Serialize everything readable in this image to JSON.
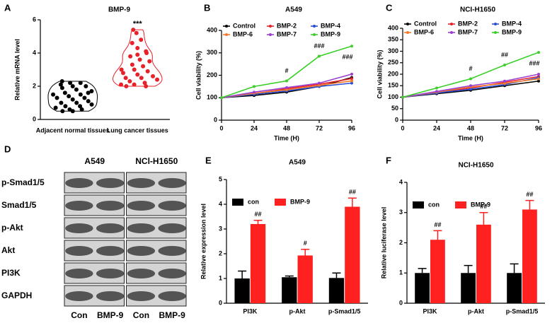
{
  "chart_data": [
    {
      "type": "violin",
      "panel": "A",
      "title": "BMP-9",
      "ylabel": "Relative mRNA level",
      "categories": [
        "Adjacent normal tissues",
        "Lung cancer tissues"
      ],
      "colors": [
        "#000000",
        "#e8202a"
      ],
      "values": [
        [
          2.3,
          2.2,
          2.2,
          2.1,
          2.0,
          2.0,
          1.9,
          1.8,
          1.7,
          1.6,
          1.5,
          1.5,
          1.4,
          1.3,
          1.3,
          1.2,
          1.1,
          1.0,
          1.0,
          0.9,
          0.8,
          0.8,
          0.7,
          0.6,
          0.6,
          0.5,
          0.5,
          1.6
        ],
        [
          5.4,
          5.2,
          4.8,
          4.6,
          4.3,
          4.0,
          3.8,
          3.6,
          3.5,
          3.3,
          3.2,
          3.0,
          3.0,
          2.9,
          2.8,
          2.7,
          2.6,
          2.5,
          2.5,
          2.4,
          2.3,
          2.2,
          2.1,
          2.1,
          2.0,
          2.0,
          3.9,
          4.1
        ]
      ],
      "annotations": [
        null,
        "***"
      ],
      "ylim": [
        0,
        6
      ],
      "yticks": [
        0,
        2,
        4,
        6
      ]
    },
    {
      "type": "line",
      "panel": "B",
      "title": "A549",
      "xlabel": "Time (H)",
      "ylabel": "Cell viability (%)",
      "x": [
        0,
        24,
        48,
        72,
        96
      ],
      "xlim": [
        0,
        96
      ],
      "xticks": [
        0,
        24,
        48,
        72,
        96
      ],
      "ylim": [
        0,
        400
      ],
      "yticks": [
        0,
        100,
        200,
        300,
        400
      ],
      "series": [
        {
          "name": "Control",
          "color": "#000000",
          "values": [
            100,
            110,
            125,
            150,
            190
          ]
        },
        {
          "name": "BMP-2",
          "color": "#e8202a",
          "values": [
            100,
            118,
            140,
            160,
            185
          ]
        },
        {
          "name": "BMP-4",
          "color": "#2a4fd6",
          "values": [
            100,
            115,
            130,
            150,
            165
          ]
        },
        {
          "name": "BMP-6",
          "color": "#f07a2a",
          "values": [
            100,
            120,
            135,
            155,
            175
          ]
        },
        {
          "name": "BMP-7",
          "color": "#9b3fd1",
          "values": [
            100,
            125,
            145,
            165,
            205
          ]
        },
        {
          "name": "BMP-9",
          "color": "#3ccf2a",
          "values": [
            100,
            150,
            175,
            285,
            330
          ]
        }
      ],
      "annotations": [
        null,
        null,
        "#",
        "###",
        "###"
      ]
    },
    {
      "type": "line",
      "panel": "C",
      "title": "NCI-H1650",
      "xlabel": "Time (H)",
      "ylabel": "Cell viability (%)",
      "x": [
        0,
        24,
        48,
        72,
        96
      ],
      "xlim": [
        0,
        96
      ],
      "xticks": [
        0,
        24,
        48,
        72,
        96
      ],
      "ylim": [
        0,
        400
      ],
      "yticks": [
        0,
        50,
        100,
        150,
        200,
        250,
        300,
        350,
        400
      ],
      "series": [
        {
          "name": "Control",
          "color": "#000000",
          "values": [
            100,
            115,
            130,
            150,
            170
          ]
        },
        {
          "name": "BMP-2",
          "color": "#e8202a",
          "values": [
            100,
            120,
            140,
            165,
            190
          ]
        },
        {
          "name": "BMP-4",
          "color": "#2a4fd6",
          "values": [
            100,
            118,
            135,
            155,
            185
          ]
        },
        {
          "name": "BMP-6",
          "color": "#f07a2a",
          "values": [
            100,
            122,
            145,
            160,
            180
          ]
        },
        {
          "name": "BMP-7",
          "color": "#9b3fd1",
          "values": [
            100,
            125,
            150,
            170,
            200
          ]
        },
        {
          "name": "BMP-9",
          "color": "#3ccf2a",
          "values": [
            100,
            140,
            180,
            240,
            295
          ]
        }
      ],
      "annotations": [
        null,
        null,
        "#",
        "##",
        "###"
      ]
    },
    {
      "type": "blot",
      "panel": "D",
      "groups": [
        "A549",
        "NCl-H1650"
      ],
      "rows": [
        "p-Smad1/5",
        "Smad1/5",
        "p-Akt",
        "Akt",
        "PI3K",
        "GAPDH"
      ],
      "lanes": [
        "Con",
        "BMP-9",
        "Con",
        "BMP-9"
      ]
    },
    {
      "type": "bar",
      "panel": "E",
      "title": "A549",
      "ylabel": "Relative expression level",
      "categories": [
        "PI3K",
        "p-Akt",
        "p-Smad1/5"
      ],
      "ylim": [
        0,
        5
      ],
      "yticks": [
        0,
        1,
        2,
        3,
        4,
        5
      ],
      "series": [
        {
          "name": "con",
          "color": "#000000",
          "values": [
            1.0,
            1.05,
            1.02
          ],
          "errors": [
            0.3,
            0.05,
            0.2
          ]
        },
        {
          "name": "BMP-9",
          "color": "#ff2020",
          "values": [
            3.2,
            1.93,
            3.9
          ],
          "errors": [
            0.15,
            0.25,
            0.35
          ],
          "annotations": [
            "##",
            "#",
            "##"
          ]
        }
      ]
    },
    {
      "type": "bar",
      "panel": "F",
      "title": "NCI-H1650",
      "ylabel": "Relative luciferase level",
      "categories": [
        "PI3K",
        "p-Akt",
        "p-Smad1/5"
      ],
      "ylim": [
        0,
        4
      ],
      "yticks": [
        0,
        1,
        2,
        3,
        4
      ],
      "series": [
        {
          "name": "con",
          "color": "#000000",
          "values": [
            1.0,
            1.0,
            1.0
          ],
          "errors": [
            0.15,
            0.25,
            0.3
          ]
        },
        {
          "name": "BMP-9",
          "color": "#ff2020",
          "values": [
            2.1,
            2.6,
            3.1
          ],
          "errors": [
            0.3,
            0.4,
            0.3
          ],
          "annotations": [
            "##",
            "##",
            "##"
          ]
        }
      ]
    }
  ]
}
